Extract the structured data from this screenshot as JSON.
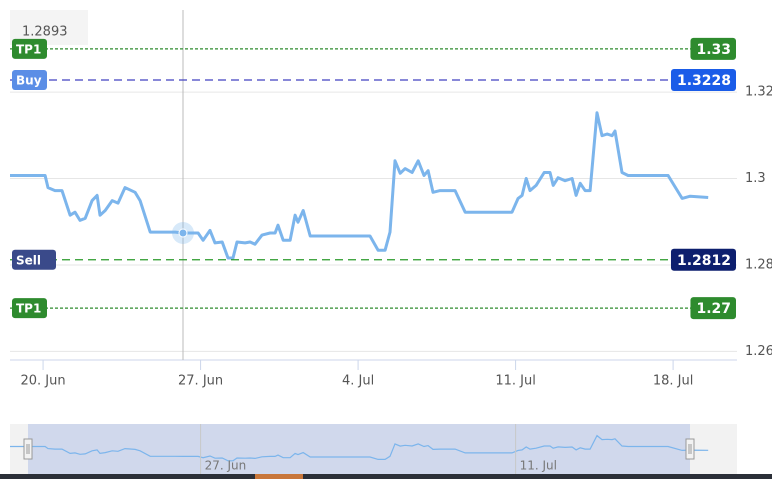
{
  "chart_data": {
    "type": "line",
    "hover_value": "1.2893",
    "x": [
      -1.47,
      0.09,
      0.22,
      0.53,
      0.84,
      1.2,
      1.42,
      1.64,
      1.87,
      2.18,
      2.4,
      2.53,
      2.76,
      3.07,
      3.33,
      3.64,
      4.09,
      4.31,
      4.76,
      5.87,
      6.22,
      6.89,
      7.11,
      7.42,
      7.64,
      7.96,
      8.22,
      8.44,
      8.62,
      8.98,
      9.2,
      9.42,
      9.73,
      10.09,
      10.31,
      10.44,
      10.67,
      10.98,
      11.2,
      11.33,
      11.56,
      11.87,
      14.53,
      14.89,
      15.2,
      15.42,
      15.64,
      15.87,
      16.09,
      16.4,
      16.67,
      16.93,
      17.11,
      17.33,
      17.64,
      18.31,
      18.76,
      20.84,
      21.11,
      21.29,
      21.47,
      21.64,
      21.91,
      22.27,
      22.53,
      22.67,
      22.89,
      23.2,
      23.51,
      23.69,
      23.87,
      24.09,
      24.31,
      24.62,
      24.84,
      25.07,
      25.29,
      25.42,
      25.73,
      26,
      27.78,
      28.4,
      28.76,
      29.56
    ],
    "series": [
      {
        "color": "#7cb5ec",
        "values": [
          1.3007,
          1.3007,
          1.2979,
          1.2972,
          1.2972,
          1.2915,
          1.2922,
          1.2903,
          1.2908,
          1.2949,
          1.2961,
          1.2915,
          1.2926,
          1.2949,
          1.2943,
          1.2979,
          1.2968,
          1.2949,
          1.2876,
          1.2876,
          1.2874,
          1.2874,
          1.2857,
          1.288,
          1.2851,
          1.2853,
          1.2816,
          1.2816,
          1.2853,
          1.2851,
          1.2853,
          1.2848,
          1.2869,
          1.2874,
          1.2874,
          1.2892,
          1.2857,
          1.2857,
          1.2915,
          1.2899,
          1.2926,
          1.2867,
          1.2867,
          1.2834,
          1.2834,
          1.2876,
          1.3041,
          1.3012,
          1.3023,
          1.3014,
          1.3041,
          1.3007,
          1.3018,
          1.2968,
          1.2972,
          1.2972,
          1.2922,
          1.2922,
          1.2954,
          1.2961,
          1.3,
          1.2972,
          1.2984,
          1.3014,
          1.3014,
          1.2984,
          1.3002,
          1.2995,
          1.3,
          1.2961,
          1.2989,
          1.2972,
          1.2972,
          1.3152,
          1.3099,
          1.3103,
          1.3099,
          1.311,
          1.3014,
          1.3007,
          1.3007,
          1.2954,
          1.2959,
          1.2956
        ]
      }
    ],
    "levels": [
      {
        "name": "TP1",
        "value": 1.33,
        "color": "#2e8b2e",
        "badge": "#2e8b2e",
        "dash": "3,2"
      },
      {
        "name": "Buy",
        "value": 1.3228,
        "color": "#4040c0",
        "badge": "#1a5ce8",
        "left_badge": "#5b8ee6",
        "dash": "8,5"
      },
      {
        "name": "Sell",
        "value": 1.2812,
        "color": "#2a9a2a",
        "badge": "#0d1f6e",
        "left_badge": "#3a4a8a",
        "dash": "8,5"
      },
      {
        "name": "TP1",
        "value": 1.27,
        "color": "#2e8b2e",
        "badge": "#2e8b2e",
        "dash": "3,2"
      }
    ],
    "xlim": [
      -1.47,
      30.84
    ],
    "ylim": [
      1.258,
      1.339
    ],
    "xticks": [
      {
        "value": 0,
        "label": "20. Jun"
      },
      {
        "value": 7,
        "label": "27. Jun"
      },
      {
        "value": 14,
        "label": "4. Jul"
      },
      {
        "value": 21,
        "label": "11. Jul"
      },
      {
        "value": 28,
        "label": "18. Jul"
      }
    ],
    "yticks": [
      1.26,
      1.28,
      1.3,
      1.32
    ],
    "grid": true
  }
}
